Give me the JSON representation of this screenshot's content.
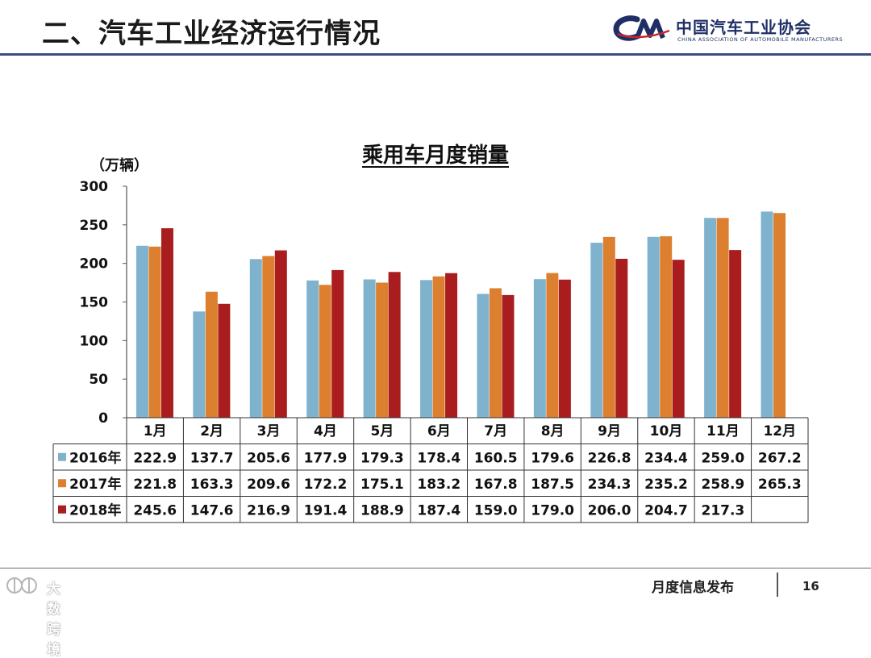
{
  "header": {
    "title": "二、汽车工业经济运行情况",
    "logo_cn": "中国汽车工业协会",
    "logo_en": "CHINA ASSOCIATION OF AUTOMOBILE MANUFACTURERS"
  },
  "chart_data": {
    "type": "bar",
    "title": "乘用车月度销量",
    "ylabel": "（万辆）",
    "xlabel": "",
    "ylim": [
      0,
      300
    ],
    "yticks": [
      0,
      50,
      100,
      150,
      200,
      250,
      300
    ],
    "categories": [
      "1月",
      "2月",
      "3月",
      "4月",
      "5月",
      "6月",
      "7月",
      "8月",
      "9月",
      "10月",
      "11月",
      "12月"
    ],
    "series": [
      {
        "name": "2016年",
        "color": "#7fb3cd",
        "values": [
          222.9,
          137.7,
          205.6,
          177.9,
          179.3,
          178.4,
          160.5,
          179.6,
          226.8,
          234.4,
          259.0,
          267.2
        ],
        "labels": [
          "222.9",
          "137.7",
          "205.6",
          "177.9",
          "179.3",
          "178.4",
          "160.5",
          "179.6",
          "226.8",
          "234.4",
          "259.0",
          "267.2"
        ]
      },
      {
        "name": "2017年",
        "color": "#dc7f2e",
        "values": [
          221.8,
          163.3,
          209.6,
          172.2,
          175.1,
          183.2,
          167.8,
          187.5,
          234.3,
          235.2,
          258.9,
          265.3
        ],
        "labels": [
          "221.8",
          "163.3",
          "209.6",
          "172.2",
          "175.1",
          "183.2",
          "167.8",
          "187.5",
          "234.3",
          "235.2",
          "258.9",
          "265.3"
        ]
      },
      {
        "name": "2018年",
        "color": "#a91d1f",
        "values": [
          245.6,
          147.6,
          216.9,
          191.4,
          188.9,
          187.4,
          159.0,
          179.0,
          206.0,
          204.7,
          217.3,
          null
        ],
        "labels": [
          "245.6",
          "147.6",
          "216.9",
          "191.4",
          "188.9",
          "187.4",
          "159.0",
          "179.0",
          "206.0",
          "204.7",
          "217.3",
          ""
        ]
      }
    ],
    "grid": false,
    "legend": "table-left"
  },
  "footer": {
    "label": "月度信息发布",
    "page": "16",
    "watermark": "大数跨境"
  }
}
